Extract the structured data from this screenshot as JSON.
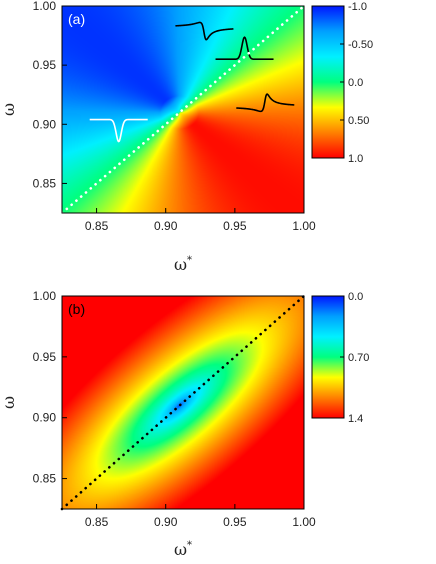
{
  "chart_data": [
    {
      "type": "heatmap",
      "panel_label": "(a)",
      "xlabel": "ω",
      "xlabel_sup": "*",
      "ylabel": "ω",
      "xlim": [
        0.825,
        1.0
      ],
      "ylim": [
        0.825,
        1.0
      ],
      "x_ticks": [
        0.85,
        0.9,
        0.95,
        1.0
      ],
      "x_tick_labels": [
        "0.85",
        "0.90",
        "0.95",
        "1.00"
      ],
      "y_ticks": [
        0.85,
        0.9,
        0.95,
        1.0
      ],
      "y_tick_labels": [
        "0.85",
        "0.90",
        "0.95",
        "1.00"
      ],
      "colorbar": {
        "range": [
          -1.0,
          1.0
        ],
        "colors": [
          "#0016ff",
          "#00a0ff",
          "#00f0ff",
          "#00ff80",
          "#ffff00",
          "#ff8000",
          "#ff0000"
        ],
        "tick_values": [
          -1.0,
          -0.5,
          0.0,
          0.5,
          1.0
        ],
        "tick_labels": [
          "-1.0",
          "-0.50",
          "0.0",
          "0.50",
          "1.0"
        ]
      },
      "diagonal_line": {
        "from": [
          0.825,
          0.825
        ],
        "to": [
          1.0,
          1.0
        ],
        "style": "dotted",
        "color": "#ffffff"
      },
      "singular_point": [
        0.91,
        0.91
      ],
      "insets": [
        {
          "shape": "dip",
          "center": [
            0.866,
            0.904
          ],
          "color": "#ffffff"
        },
        {
          "shape": "fano",
          "center": [
            0.928,
            0.982
          ],
          "color": "#000000"
        },
        {
          "shape": "peak",
          "center": [
            0.957,
            0.955
          ],
          "color": "#000000"
        },
        {
          "shape": "fano-inverted",
          "center": [
            0.972,
            0.915
          ],
          "color": "#000000"
        }
      ]
    },
    {
      "type": "heatmap",
      "panel_label": "(b)",
      "xlabel": "ω",
      "xlabel_sup": "*",
      "ylabel": "ω",
      "xlim": [
        0.825,
        1.0
      ],
      "ylim": [
        0.825,
        1.0
      ],
      "x_ticks": [
        0.85,
        0.9,
        0.95,
        1.0
      ],
      "x_tick_labels": [
        "0.85",
        "0.90",
        "0.95",
        "1.00"
      ],
      "y_ticks": [
        0.85,
        0.9,
        0.95,
        1.0
      ],
      "y_tick_labels": [
        "0.85",
        "0.90",
        "0.95",
        "1.00"
      ],
      "colorbar": {
        "range": [
          0.0,
          1.4
        ],
        "colors": [
          "#0016ff",
          "#00a0ff",
          "#00f0ff",
          "#00ff80",
          "#ffff00",
          "#ff8000",
          "#ff0000"
        ],
        "tick_values": [
          0.0,
          0.7,
          1.4
        ],
        "tick_labels": [
          "0.0",
          "0.70",
          "1.4"
        ]
      },
      "diagonal_line": {
        "from": [
          0.825,
          0.825
        ],
        "to": [
          1.0,
          1.0
        ],
        "style": "dotted",
        "color": "#000000"
      },
      "minimum_point": [
        0.91,
        0.91
      ],
      "minimum_value": 0.0
    }
  ]
}
